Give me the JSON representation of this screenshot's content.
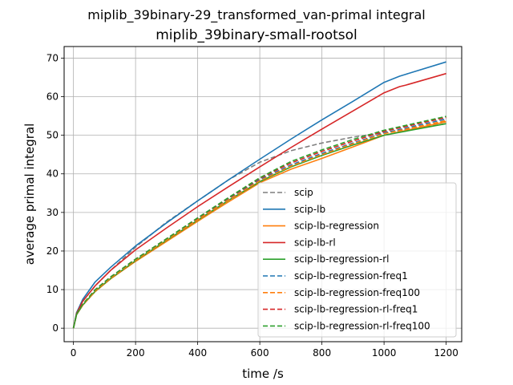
{
  "chart_data": {
    "type": "line",
    "title": "miplib_39binary-29_transformed_van-primal integral",
    "subtitle": "miplib_39binary-small-rootsol",
    "xlabel": "time /s",
    "ylabel": "average primal integral",
    "xlim": [
      -30,
      1250
    ],
    "ylim": [
      -3.5,
      73
    ],
    "xticks": [
      0,
      200,
      400,
      600,
      800,
      1000,
      1200
    ],
    "yticks": [
      0,
      10,
      20,
      30,
      40,
      50,
      60,
      70
    ],
    "grid": true,
    "legend_position": "lower-right",
    "series": [
      {
        "name": "scip",
        "color": "#7f7f7f",
        "dash": "dashed",
        "x": [
          0,
          10,
          30,
          70,
          120,
          200,
          300,
          400,
          500,
          600,
          700,
          800,
          900,
          1000,
          1100,
          1200
        ],
        "y": [
          0,
          4,
          7,
          11,
          15,
          21,
          27.5,
          33,
          38.5,
          43,
          46,
          48,
          49.5,
          50.7,
          51.8,
          53
        ]
      },
      {
        "name": "scip-lb",
        "color": "#1f77b4",
        "dash": "solid",
        "x": [
          0,
          10,
          30,
          70,
          120,
          200,
          300,
          400,
          500,
          600,
          700,
          800,
          900,
          1000,
          1050,
          1070,
          1200
        ],
        "y": [
          0,
          4,
          7.5,
          12,
          15.8,
          21.3,
          27.3,
          33,
          38.5,
          43.8,
          49,
          54,
          58.8,
          63.7,
          65.3,
          65.8,
          69
        ]
      },
      {
        "name": "scip-lb-regression",
        "color": "#ff7f0e",
        "dash": "solid",
        "x": [
          0,
          10,
          30,
          70,
          120,
          200,
          300,
          400,
          500,
          600,
          700,
          800,
          900,
          1000,
          1200
        ],
        "y": [
          0,
          3.5,
          6,
          9.5,
          12.8,
          17.3,
          22.5,
          27.7,
          32.8,
          37.7,
          41.2,
          44,
          47,
          50,
          53.5
        ]
      },
      {
        "name": "scip-lb-rl",
        "color": "#d62728",
        "dash": "solid",
        "x": [
          0,
          10,
          30,
          70,
          120,
          200,
          300,
          400,
          500,
          600,
          700,
          800,
          900,
          1000,
          1050,
          1070,
          1200
        ],
        "y": [
          0,
          3.8,
          7,
          11,
          15,
          20.3,
          26,
          31.5,
          36.7,
          41.8,
          46.8,
          51.6,
          56.3,
          61,
          62.6,
          63,
          66
        ]
      },
      {
        "name": "scip-lb-regression-rl",
        "color": "#2ca02c",
        "dash": "solid",
        "x": [
          0,
          10,
          30,
          70,
          120,
          200,
          300,
          400,
          500,
          600,
          700,
          800,
          900,
          1000,
          1200
        ],
        "y": [
          0,
          3.5,
          6,
          9.6,
          12.9,
          17.5,
          22.8,
          28,
          33.2,
          38,
          41.8,
          44.8,
          47.5,
          50,
          53
        ]
      },
      {
        "name": "scip-lb-regression-freq1",
        "color": "#1f77b4",
        "dash": "dashed",
        "x": [
          0,
          10,
          30,
          70,
          120,
          200,
          300,
          400,
          500,
          600,
          700,
          800,
          900,
          1000,
          1200
        ],
        "y": [
          0,
          3.5,
          6.1,
          9.8,
          13.1,
          17.7,
          23,
          28.3,
          33.5,
          38.5,
          42.3,
          45.3,
          48,
          50.6,
          54.2
        ]
      },
      {
        "name": "scip-lb-regression-freq100",
        "color": "#ff7f0e",
        "dash": "dashed",
        "x": [
          0,
          10,
          30,
          70,
          120,
          200,
          300,
          400,
          500,
          600,
          700,
          800,
          900,
          1000,
          1200
        ],
        "y": [
          0,
          3.5,
          6,
          9.7,
          13,
          17.6,
          22.9,
          28.1,
          33.3,
          38.2,
          42,
          45,
          47.8,
          50.4,
          53.8
        ]
      },
      {
        "name": "scip-lb-regression-rl-freq1",
        "color": "#d62728",
        "dash": "dashed",
        "x": [
          0,
          10,
          30,
          70,
          120,
          200,
          300,
          400,
          500,
          600,
          700,
          800,
          900,
          1000,
          1200
        ],
        "y": [
          0,
          3.6,
          6.2,
          10,
          13.3,
          17.9,
          23.2,
          28.5,
          33.8,
          38.8,
          42.8,
          45.8,
          48.5,
          51,
          54.6
        ]
      },
      {
        "name": "scip-lb-regression-rl-freq100",
        "color": "#2ca02c",
        "dash": "dashed",
        "x": [
          0,
          10,
          30,
          70,
          120,
          200,
          300,
          400,
          500,
          600,
          700,
          800,
          900,
          1000,
          1200
        ],
        "y": [
          0,
          3.6,
          6.2,
          10,
          13.3,
          17.9,
          23.2,
          28.6,
          33.9,
          39,
          43.2,
          46.2,
          48.9,
          51.3,
          54.9
        ]
      }
    ]
  }
}
